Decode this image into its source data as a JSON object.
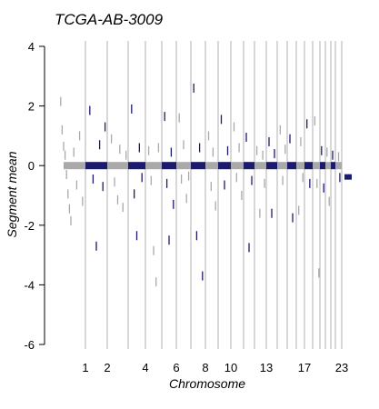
{
  "chart_data": {
    "type": "scatter",
    "title": "TCGA-AB-3009",
    "xlabel": "Chromosome",
    "ylabel": "Segment mean",
    "ylim": [
      -6,
      4
    ],
    "yticks": [
      -6,
      -4,
      -2,
      0,
      2,
      4
    ],
    "x_tick_labels": [
      "1",
      "2",
      "4",
      "6",
      "8",
      "10",
      "13",
      "17",
      "23"
    ],
    "x_tick_chromosomes": [
      1,
      2,
      4,
      6,
      8,
      10,
      13,
      17,
      23
    ],
    "chromosome_boundaries": [
      1,
      2,
      3,
      4,
      5,
      6,
      7,
      8,
      9,
      10,
      11,
      12,
      13,
      14,
      15,
      16,
      17,
      18,
      19,
      20,
      21,
      22,
      23
    ],
    "colors": {
      "odd_chromosomes": "#a9a9a9",
      "even_chromosomes": "#1a1a6e",
      "boundary_lines": "#b0b0b0",
      "axis": "#000000"
    },
    "series": [
      {
        "color_key": "odd_chromosomes",
        "points": [
          {
            "chrom": 0,
            "pos": 0.15,
            "value": 2.15
          },
          {
            "chrom": 0,
            "pos": 0.2,
            "value": 1.2
          },
          {
            "chrom": 0,
            "pos": 0.25,
            "value": 0.65
          },
          {
            "chrom": 0,
            "pos": 0.3,
            "value": 0.35
          },
          {
            "chrom": 0,
            "pos": 0.35,
            "value": -0.3
          },
          {
            "chrom": 0,
            "pos": 0.4,
            "value": -0.95
          },
          {
            "chrom": 0,
            "pos": 0.45,
            "value": -1.45
          },
          {
            "chrom": 0,
            "pos": 0.5,
            "value": -1.85
          },
          {
            "chrom": 0,
            "pos": 0.6,
            "value": 0.45
          },
          {
            "chrom": 0,
            "pos": 0.7,
            "value": -0.65
          },
          {
            "chrom": 0,
            "pos": 0.8,
            "value": 1.0
          },
          {
            "chrom": 0,
            "pos": 0.9,
            "value": -1.2
          },
          {
            "chrom": 2,
            "pos": 0.2,
            "value": 0.9
          },
          {
            "chrom": 2,
            "pos": 0.35,
            "value": -0.55
          },
          {
            "chrom": 2,
            "pos": 0.5,
            "value": -1.15
          },
          {
            "chrom": 2,
            "pos": 0.6,
            "value": 0.55
          },
          {
            "chrom": 2,
            "pos": 0.75,
            "value": -1.4
          },
          {
            "chrom": 2,
            "pos": 0.9,
            "value": 0.35
          },
          {
            "chrom": 4,
            "pos": 0.2,
            "value": 0.5
          },
          {
            "chrom": 4,
            "pos": 0.35,
            "value": -0.5
          },
          {
            "chrom": 4,
            "pos": 0.5,
            "value": -2.85
          },
          {
            "chrom": 4,
            "pos": 0.65,
            "value": -3.9
          },
          {
            "chrom": 4,
            "pos": 0.8,
            "value": 0.6
          },
          {
            "chrom": 6,
            "pos": 0.2,
            "value": 1.6
          },
          {
            "chrom": 6,
            "pos": 0.35,
            "value": -0.45
          },
          {
            "chrom": 6,
            "pos": 0.5,
            "value": 0.7
          },
          {
            "chrom": 6,
            "pos": 0.7,
            "value": -1.1
          },
          {
            "chrom": 6,
            "pos": 0.85,
            "value": -0.35
          },
          {
            "chrom": 8,
            "pos": 0.25,
            "value": 1.0
          },
          {
            "chrom": 8,
            "pos": 0.45,
            "value": -0.7
          },
          {
            "chrom": 8,
            "pos": 0.6,
            "value": 0.45
          },
          {
            "chrom": 8,
            "pos": 0.8,
            "value": -1.35
          },
          {
            "chrom": 10,
            "pos": 0.25,
            "value": 1.3
          },
          {
            "chrom": 10,
            "pos": 0.45,
            "value": -0.4
          },
          {
            "chrom": 10,
            "pos": 0.65,
            "value": 0.6
          },
          {
            "chrom": 10,
            "pos": 0.85,
            "value": -1.0
          },
          {
            "chrom": 12,
            "pos": 0.2,
            "value": 0.5
          },
          {
            "chrom": 12,
            "pos": 0.45,
            "value": -1.6
          },
          {
            "chrom": 12,
            "pos": 0.7,
            "value": 0.35
          },
          {
            "chrom": 12,
            "pos": 0.85,
            "value": -0.6
          },
          {
            "chrom": 14,
            "pos": 0.3,
            "value": 1.2
          },
          {
            "chrom": 14,
            "pos": 0.55,
            "value": -0.5
          },
          {
            "chrom": 14,
            "pos": 0.8,
            "value": 0.55
          },
          {
            "chrom": 16,
            "pos": 0.3,
            "value": -1.5
          },
          {
            "chrom": 16,
            "pos": 0.55,
            "value": 0.8
          },
          {
            "chrom": 16,
            "pos": 0.8,
            "value": -0.4
          },
          {
            "chrom": 18,
            "pos": 0.3,
            "value": 1.5
          },
          {
            "chrom": 18,
            "pos": 0.6,
            "value": -0.6
          },
          {
            "chrom": 18,
            "pos": 0.85,
            "value": -3.6
          },
          {
            "chrom": 20,
            "pos": 0.3,
            "value": 0.45
          },
          {
            "chrom": 20,
            "pos": 0.7,
            "value": -1.2
          },
          {
            "chrom": 22,
            "pos": 0.5,
            "value": 0.3
          }
        ]
      },
      {
        "color_key": "even_chromosomes",
        "points": [
          {
            "chrom": 1,
            "pos": 0.2,
            "value": 1.85
          },
          {
            "chrom": 1,
            "pos": 0.35,
            "value": -0.45
          },
          {
            "chrom": 1,
            "pos": 0.5,
            "value": -2.7
          },
          {
            "chrom": 1,
            "pos": 0.65,
            "value": 0.7
          },
          {
            "chrom": 1,
            "pos": 0.8,
            "value": -0.7
          },
          {
            "chrom": 1,
            "pos": 0.9,
            "value": 1.3
          },
          {
            "chrom": 3,
            "pos": 0.2,
            "value": 1.9
          },
          {
            "chrom": 3,
            "pos": 0.35,
            "value": -0.95
          },
          {
            "chrom": 3,
            "pos": 0.5,
            "value": -2.35
          },
          {
            "chrom": 3,
            "pos": 0.65,
            "value": 0.6
          },
          {
            "chrom": 3,
            "pos": 0.8,
            "value": -0.4
          },
          {
            "chrom": 5,
            "pos": 0.2,
            "value": 1.65
          },
          {
            "chrom": 5,
            "pos": 0.35,
            "value": -0.6
          },
          {
            "chrom": 5,
            "pos": 0.5,
            "value": -2.5
          },
          {
            "chrom": 5,
            "pos": 0.65,
            "value": 0.45
          },
          {
            "chrom": 5,
            "pos": 0.8,
            "value": -1.3
          },
          {
            "chrom": 7,
            "pos": 0.2,
            "value": 2.6
          },
          {
            "chrom": 7,
            "pos": 0.4,
            "value": -2.35
          },
          {
            "chrom": 7,
            "pos": 0.6,
            "value": 0.6
          },
          {
            "chrom": 7,
            "pos": 0.8,
            "value": -3.7
          },
          {
            "chrom": 9,
            "pos": 0.25,
            "value": 1.55
          },
          {
            "chrom": 9,
            "pos": 0.5,
            "value": -0.65
          },
          {
            "chrom": 9,
            "pos": 0.75,
            "value": 0.5
          },
          {
            "chrom": 11,
            "pos": 0.25,
            "value": 0.95
          },
          {
            "chrom": 11,
            "pos": 0.5,
            "value": -2.75
          },
          {
            "chrom": 11,
            "pos": 0.75,
            "value": -0.5
          },
          {
            "chrom": 13,
            "pos": 0.25,
            "value": 0.8
          },
          {
            "chrom": 13,
            "pos": 0.5,
            "value": -1.6
          },
          {
            "chrom": 13,
            "pos": 0.75,
            "value": 0.4
          },
          {
            "chrom": 15,
            "pos": 0.3,
            "value": 0.9
          },
          {
            "chrom": 15,
            "pos": 0.6,
            "value": -1.75
          },
          {
            "chrom": 17,
            "pos": 0.3,
            "value": 1.4
          },
          {
            "chrom": 17,
            "pos": 0.65,
            "value": -0.6
          },
          {
            "chrom": 19,
            "pos": 0.3,
            "value": 0.5
          },
          {
            "chrom": 19,
            "pos": 0.7,
            "value": -0.75
          },
          {
            "chrom": 21,
            "pos": 0.4,
            "value": 0.35
          },
          {
            "chrom": 22,
            "pos": 0.7,
            "value": -0.4
          }
        ]
      }
    ]
  }
}
